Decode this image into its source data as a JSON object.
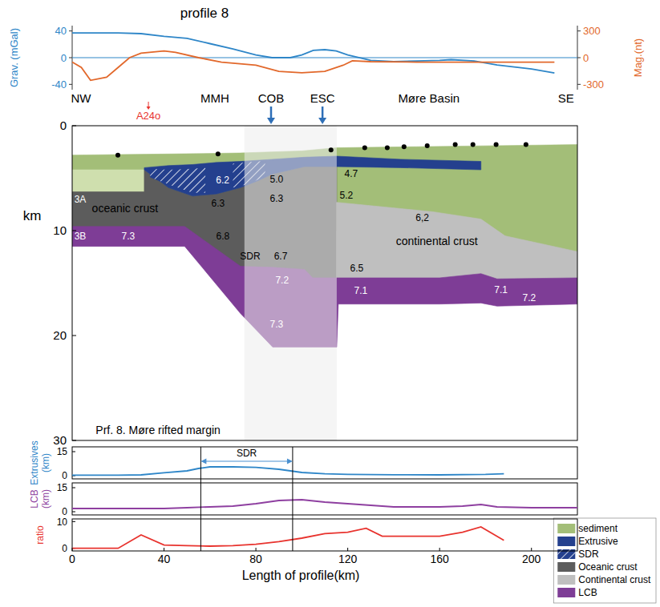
{
  "chart_data": [
    {
      "type": "line",
      "title": "profile 8",
      "ylabel": "Grav. (mGal)",
      "y2label": "Mag.(nt)",
      "xlim": [
        0,
        220
      ],
      "ylim": [
        -48,
        48
      ],
      "yticks": [
        -40,
        0,
        40
      ],
      "y2lim": [
        -360,
        360
      ],
      "y2ticks": [
        -300,
        0,
        300
      ],
      "tick_labels": "y",
      "hlines": [
        0
      ],
      "series": [
        {
          "color": "#2e86c8",
          "x": [
            0,
            10,
            20,
            30,
            40,
            50,
            60,
            70,
            80,
            87,
            95,
            100,
            105,
            110,
            115,
            120,
            130,
            140,
            150,
            160,
            165,
            175,
            185,
            200,
            210
          ],
          "values": [
            37,
            37,
            37,
            36,
            32,
            29,
            21,
            13,
            4,
            0,
            0,
            4,
            11,
            12,
            10,
            4,
            -4,
            -6,
            -5,
            -4,
            -3,
            -5,
            -11,
            -17,
            -23
          ]
        },
        {
          "color": "#e2682b",
          "axis": "y2",
          "x": [
            0,
            4,
            8,
            15,
            20,
            25,
            30,
            40,
            45,
            55,
            65,
            80,
            90,
            100,
            110,
            118,
            122,
            130,
            150,
            200,
            210
          ],
          "values": [
            -50,
            -110,
            -255,
            -220,
            -110,
            0,
            50,
            75,
            60,
            0,
            -50,
            -85,
            -155,
            -170,
            -155,
            -85,
            -35,
            -45,
            -50,
            -50,
            -50
          ]
        }
      ]
    },
    {
      "type": "cross_section",
      "ylabel": "km",
      "xlim": [
        0,
        220
      ],
      "ylim": [
        0,
        30
      ],
      "yticks": [
        0,
        10,
        20,
        30
      ],
      "tick_labels": "y",
      "layers": [
        {
          "name": "sediment",
          "color": "#a3be78",
          "x": [
            0,
            40,
            73,
            100,
            115,
            150,
            185,
            220
          ],
          "top": [
            2.8,
            2.7,
            2.6,
            2.4,
            2.1,
            2.0,
            1.9,
            1.8
          ],
          "bottom": [
            10,
            10,
            10,
            10,
            10,
            10,
            11,
            12.5
          ]
        },
        {
          "name": "sediment",
          "color": "#cfdfae",
          "x": [
            0,
            31.4
          ],
          "top": [
            4.2,
            4.2
          ],
          "bottom": [
            6.3,
            6.3
          ]
        },
        {
          "name": "Oceanic crust",
          "color": "#5c5c5c",
          "x": [
            0,
            31.4,
            31.4,
            41.9,
            52.4,
            62.8,
            73.3,
            80.3,
            87.3,
            101.2,
            115.2
          ],
          "top": [
            6.3,
            6.3,
            4.2,
            5.9,
            6.7,
            6.5,
            5.9,
            5.3,
            4.6,
            3.9,
            3.9
          ],
          "bottom": [
            10,
            10,
            10,
            10,
            10.6,
            12.2,
            13.8,
            14,
            14,
            14.5,
            15
          ]
        },
        {
          "name": "Continental crust",
          "color": "#bfbfbf",
          "x": [
            115.2,
            157,
            178,
            188.5,
            220
          ],
          "top": [
            7.3,
            8.2,
            8.9,
            10.5,
            12.0
          ],
          "bottom": [
            15.2,
            15.2,
            15.2,
            15.2,
            15.2
          ]
        },
        {
          "name": "Extrusive",
          "color": "#24408e",
          "x": [
            31.4,
            41.9,
            52.4,
            62.8,
            73.3,
            80.3,
            87.3,
            101.2,
            115.2,
            143.1,
            178.0
          ],
          "top": [
            4.0,
            3.8,
            3.7,
            3.5,
            3.4,
            3.3,
            3.2,
            3.0,
            2.9,
            3.2,
            3.4
          ],
          "bottom": [
            4.2,
            5.9,
            6.7,
            6.5,
            5.9,
            5.3,
            4.6,
            3.9,
            3.9,
            4.0,
            4.2
          ]
        },
        {
          "name": "SDR",
          "color": "#24408e",
          "marker": "hatch",
          "x": [
            34,
            41.9,
            52.4,
            58
          ],
          "top": [
            4.1,
            4.2,
            4.1,
            4.0
          ],
          "bottom": [
            4.9,
            5.6,
            6.4,
            6.4
          ]
        },
        {
          "name": "SDR",
          "color": "#24408e",
          "marker": "hatch",
          "x": [
            70,
            76,
            80.3,
            84
          ],
          "top": [
            3.6,
            3.5,
            3.4,
            3.4
          ],
          "bottom": [
            5.9,
            5.6,
            5.2,
            4.8
          ]
        },
        {
          "name": "LCB",
          "color": "#7e3d96",
          "x": [
            0,
            49,
            73.3,
            87.3,
            101.2,
            104.7,
            115.2,
            115.9,
            160,
            178,
            185,
            220
          ],
          "top": [
            9.6,
            9.6,
            13.4,
            13.5,
            13.7,
            14.5,
            14.5,
            14.5,
            14.5,
            14.1,
            14.6,
            14.5
          ],
          "bottom": [
            11.5,
            11.5,
            17.9,
            21.1,
            21.1,
            21.1,
            21.1,
            17.0,
            17.0,
            16.9,
            17.2,
            17.0
          ]
        }
      ],
      "cob_zone": [
        75,
        115.2
      ],
      "stations": {
        "x": [
          19.9,
          63.5,
          112.7,
          127.4,
          137.2,
          144.5,
          154.6,
          166.8,
          174.5,
          184.6,
          197.6
        ],
        "depth": [
          2.8,
          2.7,
          2.3,
          2.1,
          2.1,
          2.0,
          1.9,
          1.8,
          1.8,
          1.8,
          1.8
        ]
      },
      "labels": [
        {
          "text": "6.2",
          "x": 65.5,
          "depth": 5.2,
          "color": "#ffffff"
        },
        {
          "text": "5.0",
          "x": 89.0,
          "depth": 5.1,
          "color": "#000000"
        },
        {
          "text": "4.7",
          "x": 121.5,
          "depth": 4.6,
          "color": "#000000"
        },
        {
          "text": "6.3",
          "x": 63.5,
          "depth": 7.4,
          "color": "#000000"
        },
        {
          "text": "6.3",
          "x": 89.0,
          "depth": 6.9,
          "color": "#000000"
        },
        {
          "text": "5.2",
          "x": 119.4,
          "depth": 6.6,
          "color": "#000000"
        },
        {
          "text": "6,2",
          "x": 152.5,
          "depth": 8.8,
          "color": "#000000"
        },
        {
          "text": "6.8",
          "x": 65.6,
          "depth": 10.5,
          "color": "#000000"
        },
        {
          "text": "6.7",
          "x": 90.8,
          "depth": 12.4,
          "color": "#000000"
        },
        {
          "text": "7.2",
          "x": 91.4,
          "depth": 14.7,
          "color": "#ffffff"
        },
        {
          "text": "7.3",
          "x": 89.0,
          "depth": 18.9,
          "color": "#ffffff"
        },
        {
          "text": "6.5",
          "x": 123.9,
          "depth": 13.6,
          "color": "#000000"
        },
        {
          "text": "7.1",
          "x": 125.7,
          "depth": 15.7,
          "color": "#ffffff"
        },
        {
          "text": "7.1",
          "x": 186.7,
          "depth": 15.6,
          "color": "#ffffff"
        },
        {
          "text": "7.2",
          "x": 199.0,
          "depth": 16.4,
          "color": "#ffffff"
        },
        {
          "text": "7.3",
          "x": 24.4,
          "depth": 10.5,
          "color": "#ffffff"
        },
        {
          "text": "3A",
          "x": 3.5,
          "depth": 7.0,
          "color": "#ffffff"
        },
        {
          "text": "3B",
          "x": 3.5,
          "depth": 10.5,
          "color": "#ffffff"
        },
        {
          "text": "SDR",
          "x": 77.5,
          "depth": 12.4,
          "color": "#000000"
        },
        {
          "text": "oceanic crust",
          "x": 23,
          "depth": 7.9,
          "color": "#000000"
        },
        {
          "text": "continental crust",
          "x": 158.8,
          "depth": 11.0,
          "color": "#000000"
        },
        {
          "text": "Prf. 8. Møre rifted margin",
          "x": 37.4,
          "depth": 29.0,
          "color": "#000000"
        }
      ],
      "top_labels": [
        {
          "text": "NW",
          "x": 3.8
        },
        {
          "text": "MMH",
          "x": 62.1
        },
        {
          "text": "COB",
          "x": 86.6,
          "marker": "arrow"
        },
        {
          "text": "ESC",
          "x": 109,
          "marker": "arrow"
        },
        {
          "text": "Møre Basin",
          "x": 155.3
        },
        {
          "text": "SE",
          "x": 215
        }
      ],
      "anomaly": {
        "text": "A24o",
        "x": 33.2,
        "color": "#e8332e"
      },
      "legend": "lower right",
      "legend_items": [
        {
          "label": "sediment",
          "color": "#a3be78"
        },
        {
          "label": "Extrusive",
          "color": "#24408e"
        },
        {
          "label": "SDR",
          "color": "#24408e",
          "marker": "hatch"
        },
        {
          "label": "Oceanic crust",
          "color": "#5c5c5c"
        },
        {
          "label": "Continental crust",
          "color": "#bfbfbf"
        },
        {
          "label": "LCB",
          "color": "#7e3d96"
        }
      ]
    },
    {
      "type": "line",
      "ylabel": "Extrusives (km)",
      "xlim": [
        0,
        220
      ],
      "ylim": [
        -2,
        18
      ],
      "yticks": [
        0,
        15
      ],
      "tick_labels": "y",
      "color": "#2e86c8",
      "x": [
        0,
        20,
        30,
        40,
        50,
        55,
        60,
        70,
        80,
        90,
        100,
        110,
        120,
        140,
        160,
        180,
        188
      ],
      "values": [
        0.3,
        0.3,
        0.5,
        1.8,
        3,
        4.5,
        5.5,
        5.5,
        5.2,
        4,
        2,
        1.2,
        0.8,
        0.6,
        0.5,
        0.8,
        1.2
      ],
      "span": {
        "label": "SDR",
        "x": [
          56,
          96
        ]
      }
    },
    {
      "type": "line",
      "ylabel": "LCB (km)",
      "xlim": [
        0,
        220
      ],
      "ylim": [
        -2,
        18
      ],
      "yticks": [
        0,
        15
      ],
      "tick_labels": "y",
      "color": "#8e3fa0",
      "x": [
        0,
        20,
        40,
        50,
        60,
        70,
        80,
        90,
        100,
        110,
        120,
        140,
        160,
        170,
        178,
        185,
        200,
        220
      ],
      "values": [
        2,
        2,
        2,
        2.5,
        3,
        3.5,
        5,
        7,
        7.5,
        6,
        5,
        3,
        3,
        3.5,
        4.5,
        3,
        2.5,
        2.5
      ]
    },
    {
      "type": "line",
      "ylabel": "ratio",
      "xlabel": "Length of profile(km)",
      "xlim": [
        0,
        220
      ],
      "ylim": [
        -1,
        11
      ],
      "yticks": [
        0,
        10
      ],
      "xticks": [
        0,
        40,
        80,
        120,
        160,
        200
      ],
      "tick_labels": true,
      "color": "#e8332e",
      "x": [
        0,
        20,
        30,
        40,
        50,
        60,
        70,
        80,
        90,
        100,
        110,
        120,
        128,
        135,
        150,
        160,
        170,
        178,
        188
      ],
      "values": [
        0,
        0,
        5,
        1.2,
        1,
        0.8,
        1,
        1.5,
        2.5,
        3.8,
        5.5,
        6,
        7.5,
        4.5,
        4.5,
        4.5,
        6,
        8,
        3
      ]
    }
  ]
}
